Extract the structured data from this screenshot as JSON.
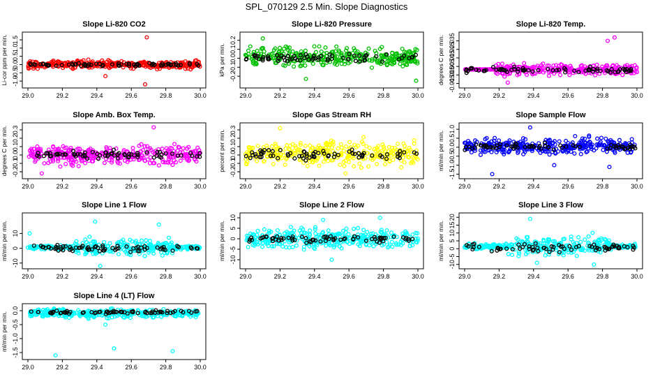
{
  "title": "SPL_070129  2.5 Min. Slope Diagnostics",
  "colors": {
    "foreground": "#000000",
    "background": "#ffffff",
    "overlay_points": "#000000"
  },
  "chart_data": [
    {
      "type": "scatter",
      "title": "Slope Li-820 CO2",
      "ylabel": "Li-cor ppm per min.",
      "color": "#ff0000",
      "xlim": [
        29.0,
        30.0
      ],
      "ylim": [
        -1.25,
        1.8
      ],
      "x_ticks": [
        29.0,
        29.2,
        29.4,
        29.6,
        29.8,
        30.0
      ],
      "y_ticks": [
        -1.0,
        -0.5,
        0.0,
        0.5,
        1.0,
        1.5
      ],
      "y_tick_labels": [
        "-1.0",
        "-0.5",
        "0.0",
        "0.5",
        "1.0",
        "1.5"
      ],
      "band": [
        -0.3,
        0.3
      ],
      "outliers": [
        [
          29.69,
          1.65
        ],
        [
          29.68,
          -1.2
        ],
        [
          29.45,
          -0.7
        ]
      ]
    },
    {
      "type": "scatter",
      "title": "Slope Li-820 Pressure",
      "ylabel": "kPa per min.",
      "color": "#00c000",
      "xlim": [
        29.0,
        30.0
      ],
      "ylim": [
        -0.3,
        0.26
      ],
      "x_ticks": [
        29.0,
        29.2,
        29.4,
        29.6,
        29.8,
        30.0
      ],
      "y_ticks": [
        -0.2,
        -0.1,
        0.0,
        0.1,
        0.2
      ],
      "y_tick_labels": [
        "-0.2",
        "-0.1",
        "0.0",
        "0.1",
        "0.2"
      ],
      "band": [
        -0.12,
        0.14
      ],
      "outliers": [
        [
          29.1,
          0.22
        ],
        [
          29.99,
          -0.25
        ],
        [
          29.35,
          -0.23
        ]
      ]
    },
    {
      "type": "scatter",
      "title": "Slope Li-820 Temp.",
      "ylabel": "degrees C per min.",
      "color": "#ff00ff",
      "xlim": [
        29.0,
        30.0
      ],
      "ylim": [
        -0.017,
        0.042
      ],
      "x_ticks": [
        29.0,
        29.2,
        29.4,
        29.6,
        29.8,
        30.0
      ],
      "y_ticks": [
        -0.015,
        -0.005,
        0.005,
        0.015,
        0.025,
        0.035
      ],
      "y_tick_labels": [
        "-0.015",
        "-0.005",
        "0.005",
        "0.015",
        "0.025",
        "0.035"
      ],
      "band": [
        -0.007,
        0.01
      ],
      "outliers": [
        [
          29.87,
          0.039
        ],
        [
          29.83,
          0.035
        ],
        [
          29.25,
          -0.014
        ]
      ]
    },
    {
      "type": "scatter",
      "title": "Slope Amb. Box Temp.",
      "ylabel": "degrees C per min.",
      "color": "#ff00ff",
      "xlim": [
        29.0,
        30.0
      ],
      "ylim": [
        -0.25,
        0.35
      ],
      "x_ticks": [
        29.0,
        29.2,
        29.4,
        29.6,
        29.8,
        30.0
      ],
      "y_ticks": [
        -0.2,
        -0.1,
        0.0,
        0.1,
        0.2,
        0.3
      ],
      "y_tick_labels": [
        "-0.2",
        "-0.1",
        "0.0",
        "0.1",
        "0.2",
        "0.3"
      ],
      "band": [
        -0.14,
        0.14
      ],
      "outliers": [
        [
          29.73,
          0.33
        ],
        [
          29.08,
          -0.22
        ]
      ]
    },
    {
      "type": "scatter",
      "title": "Slope Gas Stream RH",
      "ylabel": "percent per min.",
      "color": "#ffff00",
      "xlim": [
        29.0,
        30.0
      ],
      "ylim": [
        -0.25,
        0.35
      ],
      "x_ticks": [
        29.0,
        29.2,
        29.4,
        29.6,
        29.8,
        30.0
      ],
      "y_ticks": [
        -0.2,
        -0.1,
        0.0,
        0.1,
        0.2,
        0.3
      ],
      "y_tick_labels": [
        "-0.2",
        "-0.1",
        "0.0",
        "0.1",
        "0.2",
        "0.3"
      ],
      "band": [
        -0.16,
        0.2
      ],
      "outliers": [
        [
          29.2,
          0.32
        ],
        [
          29.58,
          -0.22
        ]
      ]
    },
    {
      "type": "scatter",
      "title": "Slope Sample Flow",
      "ylabel": "ml/min per min.",
      "color": "#0000ff",
      "xlim": [
        29.0,
        30.0
      ],
      "ylim": [
        -1.6,
        1.2
      ],
      "x_ticks": [
        29.0,
        29.2,
        29.4,
        29.6,
        29.8,
        30.0
      ],
      "y_ticks": [
        -1.5,
        -1.0,
        -0.5,
        0.0,
        0.5,
        1.0
      ],
      "y_tick_labels": [
        "-1.5",
        "-1.0",
        "-0.5",
        "0.0",
        "0.5",
        "1.0"
      ],
      "band": [
        -0.5,
        0.6
      ],
      "outliers": [
        [
          29.16,
          -1.5
        ],
        [
          29.84,
          -1.1
        ],
        [
          29.38,
          1.1
        ],
        [
          29.52,
          -1.0
        ]
      ]
    },
    {
      "type": "scatter",
      "title": "Slope Line 1 Flow",
      "ylabel": "ml/min per min.",
      "color": "#00ffff",
      "xlim": [
        29.0,
        30.0
      ],
      "ylim": [
        -12,
        22
      ],
      "x_ticks": [
        29.0,
        29.2,
        29.4,
        29.6,
        29.8,
        30.0
      ],
      "y_ticks": [
        -10,
        0,
        10
      ],
      "y_tick_labels": [
        "-10",
        "0",
        "10"
      ],
      "band": [
        -6,
        7
      ],
      "outliers": [
        [
          29.39,
          18
        ],
        [
          29.42,
          -12
        ],
        [
          29.76,
          16
        ],
        [
          29.01,
          10
        ]
      ]
    },
    {
      "type": "scatter",
      "title": "Slope Line 2 Flow",
      "ylabel": "ml/min per min.",
      "color": "#00ffff",
      "xlim": [
        29.0,
        30.0
      ],
      "ylim": [
        -13,
        11
      ],
      "x_ticks": [
        29.0,
        29.2,
        29.4,
        29.6,
        29.8,
        30.0
      ],
      "y_ticks": [
        -10,
        -5,
        0,
        5,
        10
      ],
      "y_tick_labels": [
        "-10",
        "-5",
        "0",
        "5",
        "10"
      ],
      "band": [
        -6,
        6
      ],
      "outliers": [
        [
          29.78,
          10
        ],
        [
          29.45,
          9
        ],
        [
          29.5,
          -10
        ]
      ]
    },
    {
      "type": "scatter",
      "title": "Slope Line 3 Flow",
      "ylabel": "ml/min per min.",
      "color": "#00ffff",
      "xlim": [
        29.0,
        30.0
      ],
      "ylim": [
        -11,
        21
      ],
      "x_ticks": [
        29.0,
        29.2,
        29.4,
        29.6,
        29.8,
        30.0
      ],
      "y_ticks": [
        -10,
        -5,
        0,
        5,
        10,
        15,
        20
      ],
      "y_tick_labels": [
        "-10",
        "-5",
        "0",
        "5",
        "10",
        "15",
        "20"
      ],
      "band": [
        -6,
        9
      ],
      "outliers": [
        [
          29.38,
          19
        ],
        [
          29.75,
          -10
        ],
        [
          29.42,
          -9
        ]
      ]
    },
    {
      "type": "scatter",
      "title": "Slope Line 4 (LT) Flow",
      "ylabel": "ml/min per min.",
      "color": "#00ffff",
      "xlim": [
        29.0,
        30.0
      ],
      "ylim": [
        -1.65,
        0.15
      ],
      "x_ticks": [
        29.0,
        29.2,
        29.4,
        29.6,
        29.8,
        30.0
      ],
      "y_ticks": [
        -1.5,
        -1.0,
        -0.5,
        0.0
      ],
      "y_tick_labels": [
        "-1.5",
        "-1.0",
        "-0.5",
        "0.0"
      ],
      "band": [
        -0.3,
        0.1
      ],
      "outliers": [
        [
          29.16,
          -1.6
        ],
        [
          29.84,
          -1.45
        ],
        [
          29.5,
          -1.35
        ],
        [
          29.45,
          -0.5
        ]
      ]
    }
  ]
}
